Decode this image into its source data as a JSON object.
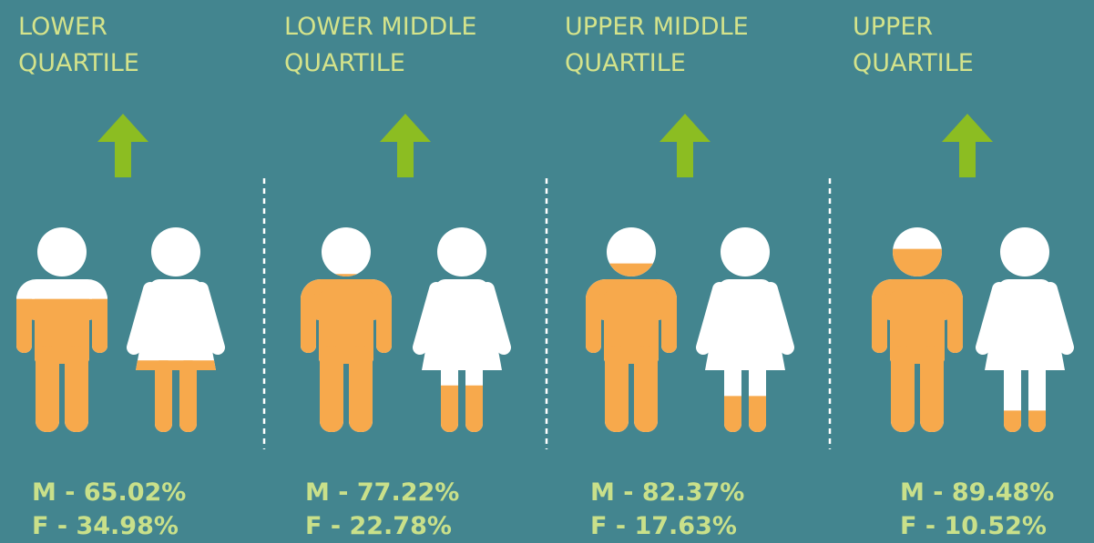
{
  "chart_data": {
    "type": "pictogram",
    "categories": [
      "LOWER\nQUARTILE",
      "LOWER MIDDLE\nQUARTILE",
      "UPPER MIDDLE\nQUARTILE",
      "UPPER\nQUARTILE"
    ],
    "series": [
      {
        "name": "M",
        "color": "#f7a94c",
        "values": [
          65.02,
          77.22,
          82.37,
          89.48
        ],
        "value_labels": [
          "M - 65.02%",
          "M - 77.22%",
          "M - 82.37%",
          "M - 89.48%"
        ]
      },
      {
        "name": "F",
        "color": "#f7a94c",
        "values": [
          34.98,
          22.78,
          17.63,
          10.52
        ],
        "value_labels": [
          "F - 34.98%",
          "F - 22.78%",
          "F - 17.63%",
          "F - 10.52%"
        ]
      }
    ],
    "ylim": [
      0,
      100
    ]
  }
}
